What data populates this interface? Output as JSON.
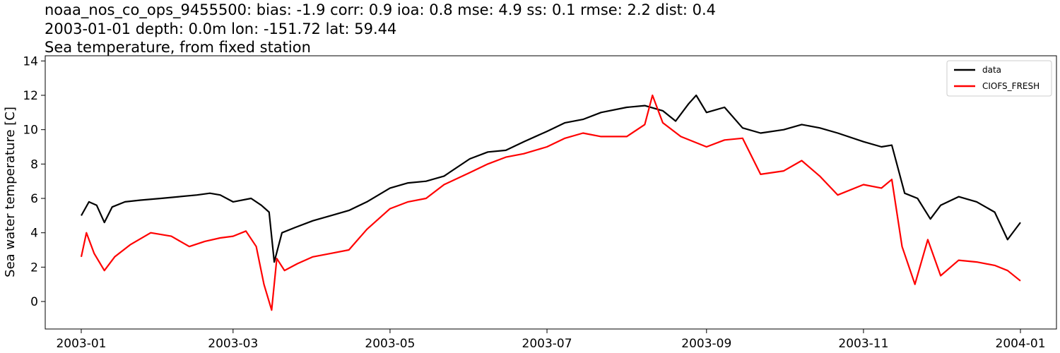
{
  "chart_data": {
    "type": "line",
    "title_lines": [
      "noaa_nos_co_ops_9455500: bias: -1.9  corr: 0.9  ioa: 0.8  mse: 4.9  ss: 0.1  rmse: 2.2  dist: 0.4",
      "2003-01-01 depth: 0.0m lon: -151.72 lat: 59.44",
      "Sea temperature, from fixed station"
    ],
    "xlabel": "",
    "ylabel": "Sea water temperature [C]",
    "xlim": [
      "2002-12-18",
      "2004-01-15"
    ],
    "ylim": [
      -1.6,
      14.3
    ],
    "xticks": [
      "2003-01",
      "2003-03",
      "2003-05",
      "2003-07",
      "2003-09",
      "2003-11",
      "2004-01"
    ],
    "yticks": [
      0,
      2,
      4,
      6,
      8,
      10,
      12,
      14
    ],
    "legend_position": "top-right",
    "grid": false,
    "series": [
      {
        "name": "data",
        "color": "#000000",
        "x": [
          "2003-01-01",
          "2003-01-04",
          "2003-01-07",
          "2003-01-10",
          "2003-01-13",
          "2003-01-18",
          "2003-01-24",
          "2003-02-01",
          "2003-02-08",
          "2003-02-15",
          "2003-02-20",
          "2003-02-24",
          "2003-03-01",
          "2003-03-08",
          "2003-03-12",
          "2003-03-15",
          "2003-03-17",
          "2003-03-20",
          "2003-03-25",
          "2003-04-01",
          "2003-04-08",
          "2003-04-15",
          "2003-04-22",
          "2003-05-01",
          "2003-05-08",
          "2003-05-15",
          "2003-05-22",
          "2003-06-01",
          "2003-06-08",
          "2003-06-15",
          "2003-06-22",
          "2003-07-01",
          "2003-07-08",
          "2003-07-15",
          "2003-07-22",
          "2003-08-01",
          "2003-08-08",
          "2003-08-15",
          "2003-08-20",
          "2003-08-25",
          "2003-08-28",
          "2003-09-01",
          "2003-09-08",
          "2003-09-15",
          "2003-09-22",
          "2003-10-01",
          "2003-10-08",
          "2003-10-15",
          "2003-10-22",
          "2003-11-01",
          "2003-11-08",
          "2003-11-12",
          "2003-11-17",
          "2003-11-22",
          "2003-11-27",
          "2003-12-01",
          "2003-12-08",
          "2003-12-15",
          "2003-12-22",
          "2003-12-27",
          "2004-01-01"
        ],
        "y": [
          5.0,
          5.8,
          5.6,
          4.6,
          5.5,
          5.8,
          5.9,
          6.0,
          6.1,
          6.2,
          6.3,
          6.2,
          5.8,
          6.0,
          5.6,
          5.2,
          2.3,
          4.0,
          4.3,
          4.7,
          5.0,
          5.3,
          5.8,
          6.6,
          6.9,
          7.0,
          7.3,
          8.3,
          8.7,
          8.8,
          9.3,
          9.9,
          10.4,
          10.6,
          11.0,
          11.3,
          11.4,
          11.1,
          10.5,
          11.5,
          12.0,
          11.0,
          11.3,
          10.1,
          9.8,
          10.0,
          10.3,
          10.1,
          9.8,
          9.3,
          9.0,
          9.1,
          6.3,
          6.0,
          4.8,
          5.6,
          6.1,
          5.8,
          5.2,
          3.6,
          4.6
        ]
      },
      {
        "name": "CIOFS_FRESH",
        "color": "#ff0000",
        "x": [
          "2003-01-01",
          "2003-01-03",
          "2003-01-06",
          "2003-01-10",
          "2003-01-14",
          "2003-01-20",
          "2003-01-28",
          "2003-02-05",
          "2003-02-12",
          "2003-02-18",
          "2003-02-24",
          "2003-03-01",
          "2003-03-06",
          "2003-03-10",
          "2003-03-13",
          "2003-03-16",
          "2003-03-18",
          "2003-03-21",
          "2003-03-26",
          "2003-04-01",
          "2003-04-08",
          "2003-04-15",
          "2003-04-22",
          "2003-05-01",
          "2003-05-08",
          "2003-05-15",
          "2003-05-22",
          "2003-06-01",
          "2003-06-08",
          "2003-06-15",
          "2003-06-22",
          "2003-07-01",
          "2003-07-08",
          "2003-07-15",
          "2003-07-22",
          "2003-08-01",
          "2003-08-08",
          "2003-08-11",
          "2003-08-15",
          "2003-08-22",
          "2003-09-01",
          "2003-09-08",
          "2003-09-15",
          "2003-09-22",
          "2003-10-01",
          "2003-10-08",
          "2003-10-15",
          "2003-10-22",
          "2003-11-01",
          "2003-11-08",
          "2003-11-12",
          "2003-11-16",
          "2003-11-21",
          "2003-11-26",
          "2003-12-01",
          "2003-12-08",
          "2003-12-15",
          "2003-12-22",
          "2003-12-27",
          "2004-01-01"
        ],
        "y": [
          2.6,
          4.0,
          2.8,
          1.8,
          2.6,
          3.3,
          4.0,
          3.8,
          3.2,
          3.5,
          3.7,
          3.8,
          4.1,
          3.2,
          1.0,
          -0.5,
          2.5,
          1.8,
          2.2,
          2.6,
          2.8,
          3.0,
          4.2,
          5.4,
          5.8,
          6.0,
          6.8,
          7.5,
          8.0,
          8.4,
          8.6,
          9.0,
          9.5,
          9.8,
          9.6,
          9.6,
          10.3,
          12.0,
          10.4,
          9.6,
          9.0,
          9.4,
          9.5,
          7.4,
          7.6,
          8.2,
          7.3,
          6.2,
          6.8,
          6.6,
          7.1,
          3.2,
          1.0,
          3.6,
          1.5,
          2.4,
          2.3,
          2.1,
          1.8,
          1.2
        ]
      }
    ]
  }
}
